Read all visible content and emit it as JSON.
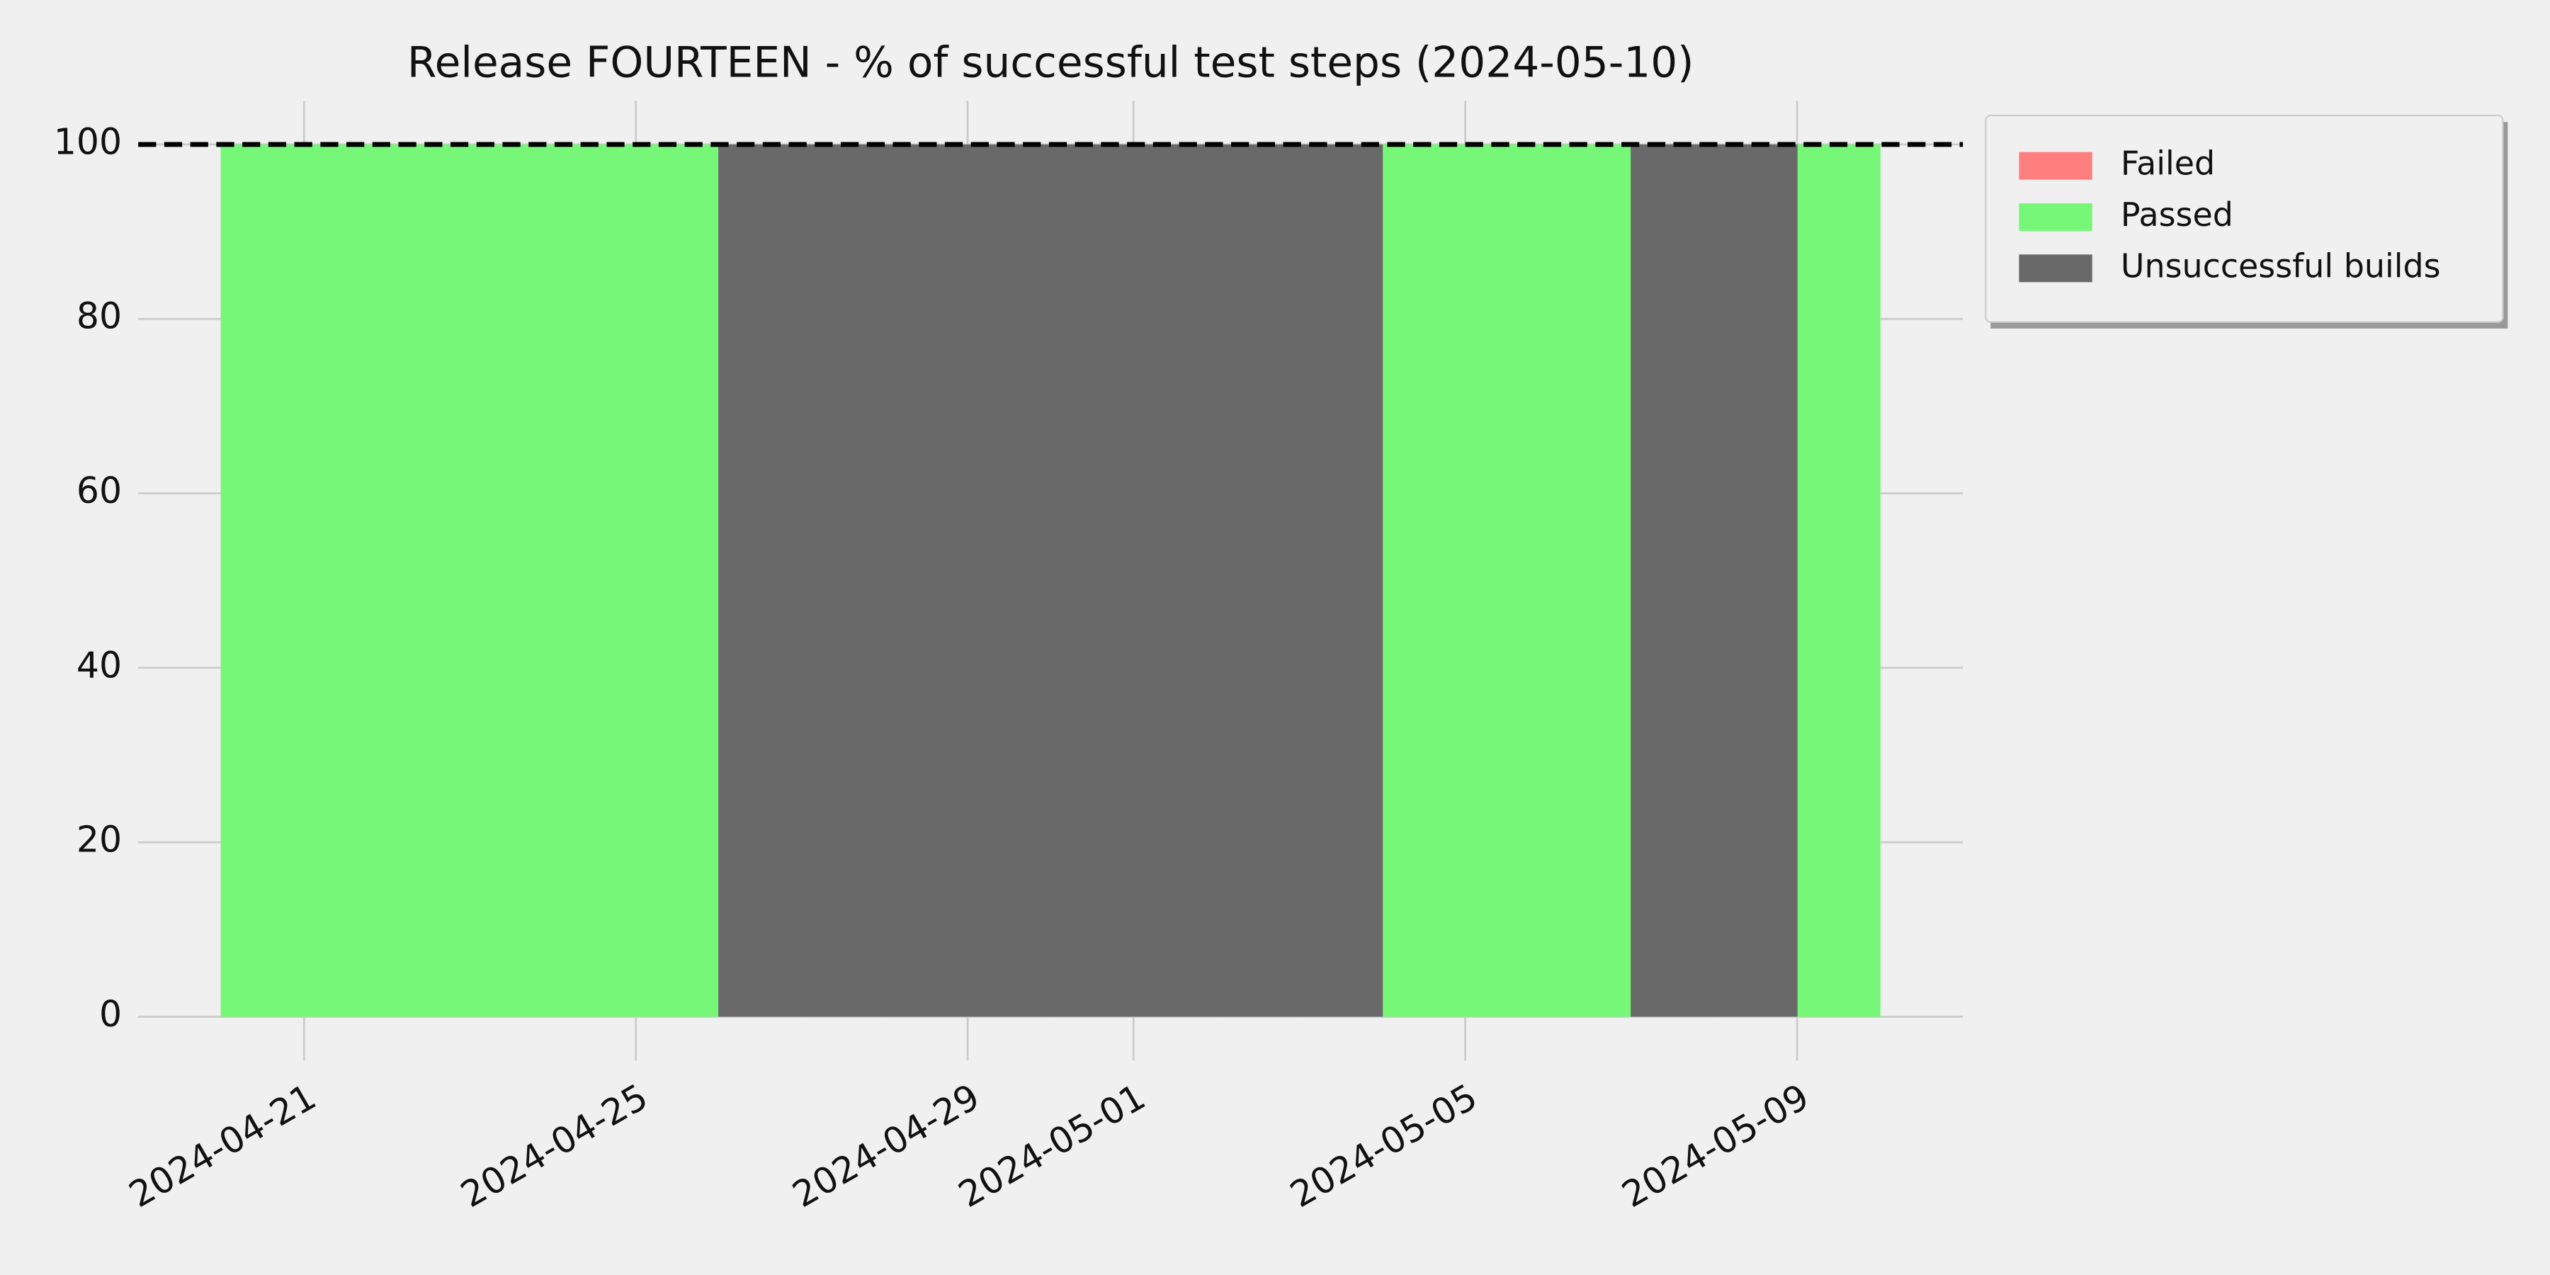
{
  "chart_data": {
    "type": "stacked-bar",
    "title": "Release FOURTEEN - % of successful test steps (2024-05-10)",
    "x": [
      "2024-04-20",
      "2024-04-21",
      "2024-04-22",
      "2024-04-23",
      "2024-04-24",
      "2024-04-25",
      "2024-04-26",
      "2024-04-27",
      "2024-04-28",
      "2024-04-29",
      "2024-04-30",
      "2024-05-01",
      "2024-05-02",
      "2024-05-03",
      "2024-05-04",
      "2024-05-05",
      "2024-05-06",
      "2024-05-07",
      "2024-05-08",
      "2024-05-09"
    ],
    "series": [
      {
        "name": "Failed",
        "color": "#ff7f7f",
        "values": [
          0,
          0,
          0,
          0,
          0,
          0,
          0,
          0,
          0,
          0,
          0,
          0,
          0,
          0,
          0,
          0,
          0,
          0,
          0,
          0
        ]
      },
      {
        "name": "Passed",
        "color": "#77f777",
        "values": [
          100,
          100,
          100,
          100,
          100,
          100,
          0,
          0,
          0,
          0,
          0,
          0,
          0,
          0,
          100,
          100,
          100,
          0,
          0,
          100
        ]
      },
      {
        "name": "Unsuccessful builds",
        "color": "#696969",
        "values": [
          0,
          0,
          0,
          0,
          0,
          0,
          100,
          100,
          100,
          100,
          100,
          100,
          100,
          100,
          0,
          0,
          0,
          100,
          100,
          0
        ]
      }
    ],
    "xlim": [
      "2024-04-19",
      "2024-05-11"
    ],
    "xticks": [
      "2024-04-21",
      "2024-04-25",
      "2024-04-29",
      "2024-05-01",
      "2024-05-05",
      "2024-05-09"
    ],
    "ylim": [
      -5,
      105
    ],
    "yticks": [
      0,
      20,
      40,
      60,
      80,
      100
    ],
    "hline": 100,
    "grid": true,
    "legend": "outside-upper-right"
  }
}
